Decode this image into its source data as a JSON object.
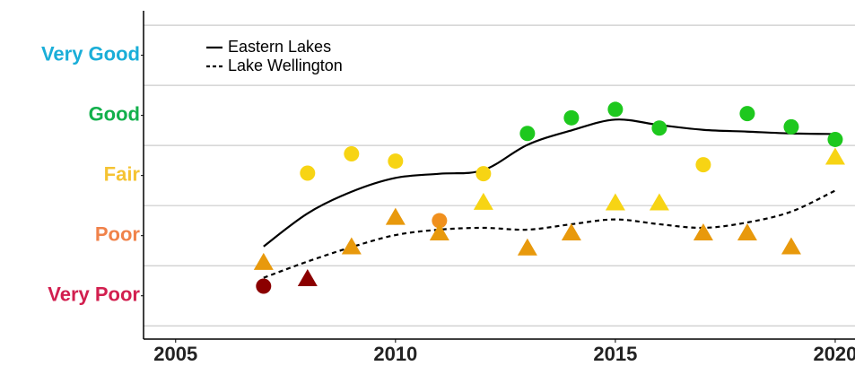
{
  "chart_data": {
    "type": "line",
    "x": [
      2007,
      2008,
      2009,
      2010,
      2011,
      2012,
      2013,
      2014,
      2015,
      2016,
      2017,
      2018,
      2019,
      2020
    ],
    "xlim": [
      2004.27,
      2020.45
    ],
    "xticks": [
      2005,
      2010,
      2015,
      2020
    ],
    "ylim": [
      0.28,
      5.74
    ],
    "yticks": [
      {
        "value": 1,
        "label": "Very Poor"
      },
      {
        "value": 2,
        "label": "Poor"
      },
      {
        "value": 3,
        "label": "Fair"
      },
      {
        "value": 4,
        "label": "Good"
      },
      {
        "value": 5,
        "label": "Very Good"
      }
    ],
    "ytick_colors": [
      "#d21f4f",
      "#f0824a",
      "#f5c333",
      "#12b04c",
      "#1aaed8"
    ],
    "ygrid": [
      0.5,
      1.5,
      2.5,
      3.5,
      4.5,
      5.5
    ],
    "legend": "top-left",
    "series": [
      {
        "name": "Eastern Lakes",
        "color": "#000000",
        "line_style": "solid",
        "values": [
          1.82,
          2.37,
          2.73,
          2.96,
          3.03,
          3.09,
          3.51,
          3.75,
          3.93,
          3.84,
          3.76,
          3.73,
          3.7,
          3.69
        ],
        "marker": "circle",
        "points": [
          1.16,
          3.04,
          3.36,
          3.24,
          2.25,
          3.03,
          3.7,
          3.96,
          4.1,
          3.79,
          3.18,
          4.03,
          3.81,
          3.6
        ],
        "point_colors": [
          "#8b0000",
          "#f7d414",
          "#f7d414",
          "#f7d414",
          "#f0901e",
          "#f7d414",
          "#1ec81e",
          "#1ec81e",
          "#1ec81e",
          "#1ec81e",
          "#f7d414",
          "#1ec81e",
          "#1ec81e",
          "#1ec81e"
        ]
      },
      {
        "name": "Lake Wellington",
        "color": "#000000",
        "line_style": "dashed",
        "values": [
          1.3,
          1.57,
          1.81,
          2.01,
          2.1,
          2.13,
          2.1,
          2.19,
          2.27,
          2.19,
          2.13,
          2.22,
          2.4,
          2.75
        ],
        "marker": "triangle",
        "points": [
          1.55,
          1.28,
          1.81,
          2.3,
          2.04,
          2.55,
          1.79,
          2.04,
          2.54,
          2.54,
          2.04,
          2.04,
          1.81,
          3.3
        ],
        "point_colors": [
          "#e8990c",
          "#8b0000",
          "#e8990c",
          "#e8990c",
          "#e8990c",
          "#f7d414",
          "#e8990c",
          "#e8990c",
          "#f7d414",
          "#f7d414",
          "#e8990c",
          "#e8990c",
          "#e8990c",
          "#f7d414"
        ]
      }
    ]
  }
}
